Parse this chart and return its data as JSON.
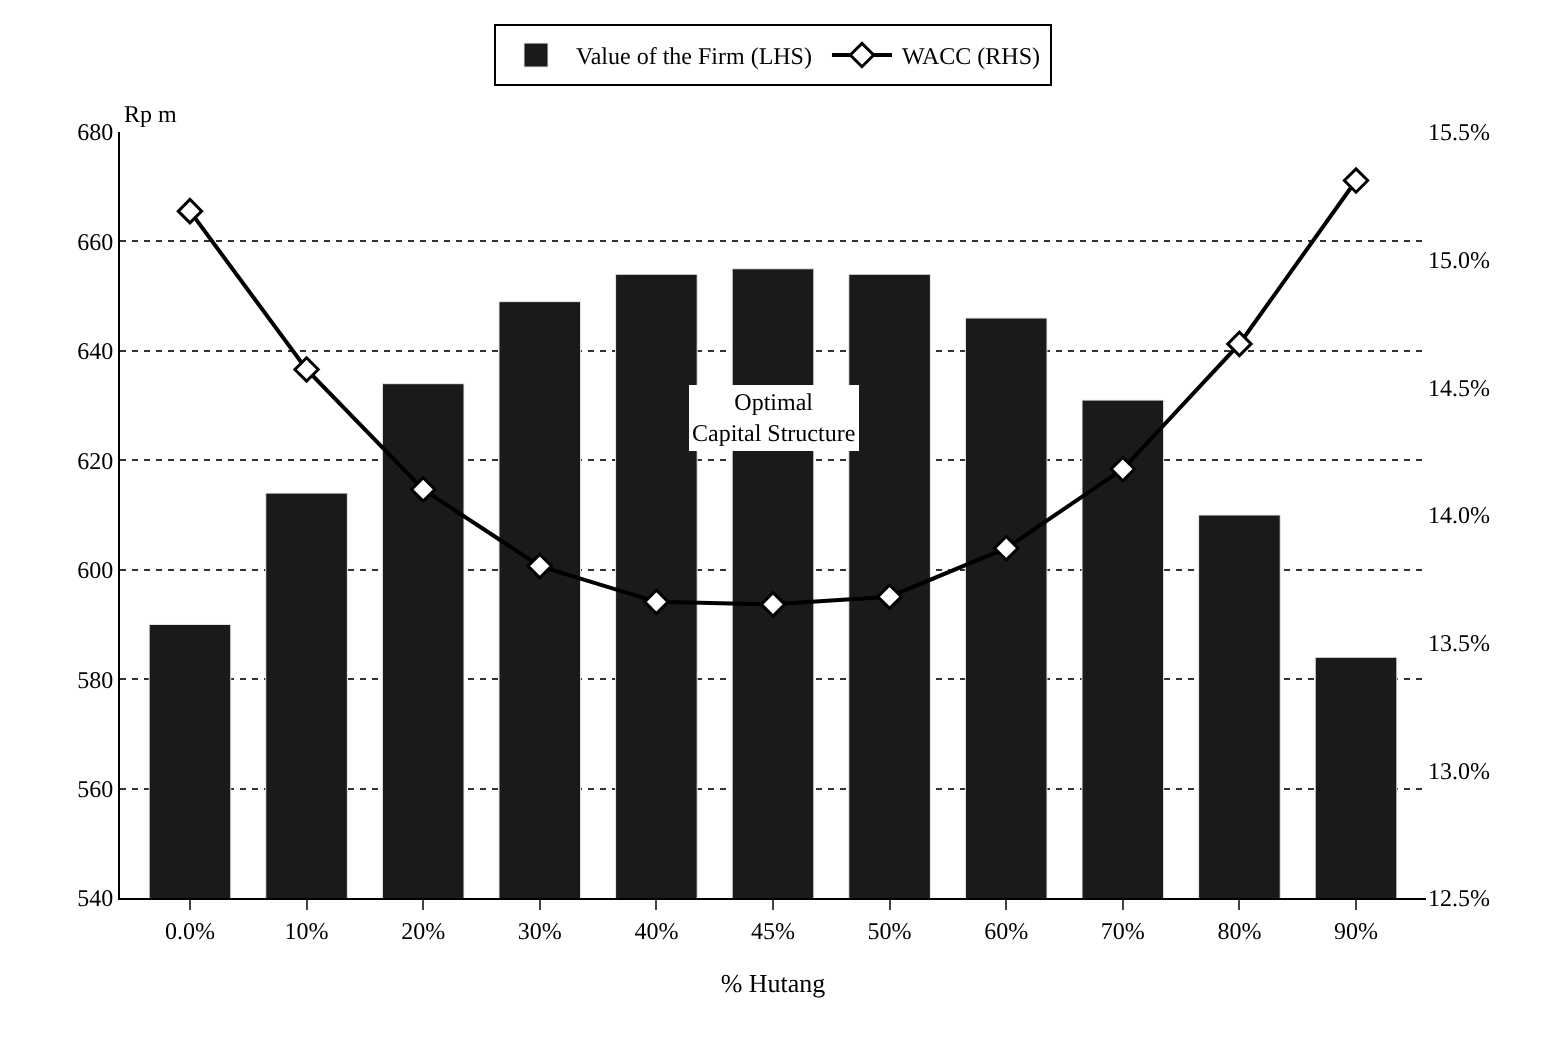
{
  "chart_data": {
    "type": "bar",
    "xlabel": "% Hutang",
    "ylabel": "Rp m",
    "categories": [
      "0.0%",
      "10%",
      "20%",
      "30%",
      "40%",
      "45%",
      "50%",
      "60%",
      "70%",
      "80%",
      "90%"
    ],
    "series": [
      {
        "name": "Value of the Firm (LHS)",
        "color": "#1a1a1a",
        "values": [
          590,
          614,
          634,
          649,
          654,
          655,
          654,
          646,
          631,
          610,
          584
        ]
      },
      {
        "name": "WACC (RHS)",
        "type": "line",
        "axis": "y2",
        "color": "#000000",
        "marker": "diamond",
        "values": [
          15.19,
          14.57,
          14.1,
          13.8,
          13.66,
          13.65,
          13.68,
          13.87,
          14.18,
          14.67,
          15.31
        ]
      }
    ],
    "ylim": [
      540,
      680
    ],
    "yticks": [
      540,
      560,
      580,
      600,
      620,
      640,
      660,
      680
    ],
    "y2lim": [
      12.5,
      15.5
    ],
    "y2ticks": [
      {
        "value": 12.5,
        "label": "12.5%"
      },
      {
        "value": 13.0,
        "label": "13.0%"
      },
      {
        "value": 13.5,
        "label": "13.5%"
      },
      {
        "value": 14.0,
        "label": "14.0%"
      },
      {
        "value": 14.5,
        "label": "14.5%"
      },
      {
        "value": 15.0,
        "label": "15.0%"
      },
      {
        "value": 15.5,
        "label": "15.5%"
      }
    ],
    "annotations": [
      "Optimal\nCapital Structure"
    ],
    "grid": "y",
    "legend": "top"
  }
}
